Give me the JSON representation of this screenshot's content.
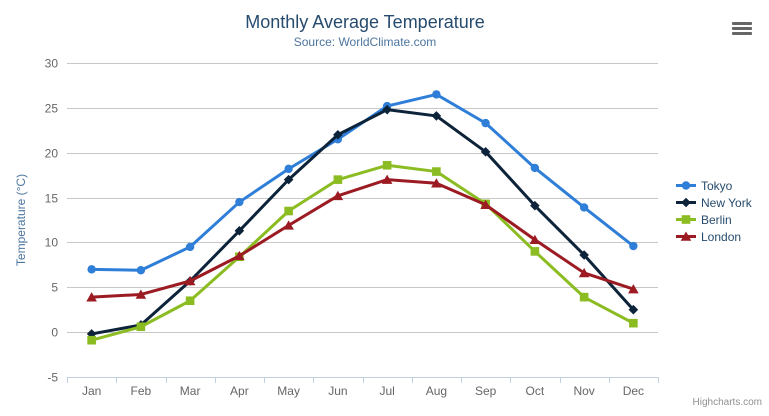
{
  "chart": {
    "credits": "Highcharts.com"
  },
  "chart_data": {
    "type": "line",
    "title": "Monthly Average Temperature",
    "subtitle": "Source: WorldClimate.com",
    "categories": [
      "Jan",
      "Feb",
      "Mar",
      "Apr",
      "May",
      "Jun",
      "Jul",
      "Aug",
      "Sep",
      "Oct",
      "Nov",
      "Dec"
    ],
    "xlabel": "",
    "ylabel": "Temperature (°C)",
    "ylim": [
      -5,
      30
    ],
    "yticks": [
      -5,
      0,
      5,
      10,
      15,
      20,
      25,
      30
    ],
    "grid": true,
    "legend_position": "right",
    "colors": {
      "grid_line": "#c8c8c8",
      "axis_line": "#c0d0e0",
      "tick_label": "#666666",
      "title": "#274b6d",
      "subtitle": "#4d759e",
      "axis_title": "#4d759e",
      "legend_text": "#274b6d"
    },
    "series": [
      {
        "name": "Tokyo",
        "color": "#2f7ed8",
        "marker": "circle",
        "values": [
          7.0,
          6.9,
          9.5,
          14.5,
          18.2,
          21.5,
          25.2,
          26.5,
          23.3,
          18.3,
          13.9,
          9.6
        ]
      },
      {
        "name": "New York",
        "color": "#0d233a",
        "marker": "diamond",
        "values": [
          -0.2,
          0.8,
          5.7,
          11.3,
          17.0,
          22.0,
          24.8,
          24.1,
          20.1,
          14.1,
          8.6,
          2.5
        ]
      },
      {
        "name": "Berlin",
        "color": "#8bbc21",
        "marker": "square",
        "values": [
          -0.9,
          0.6,
          3.5,
          8.4,
          13.5,
          17.0,
          18.6,
          17.9,
          14.3,
          9.0,
          3.9,
          1.0
        ]
      },
      {
        "name": "London",
        "color": "#9c1b23",
        "marker": "triangle",
        "values": [
          3.9,
          4.2,
          5.7,
          8.5,
          11.9,
          15.2,
          17.0,
          16.6,
          14.2,
          10.3,
          6.6,
          4.8
        ]
      }
    ]
  }
}
